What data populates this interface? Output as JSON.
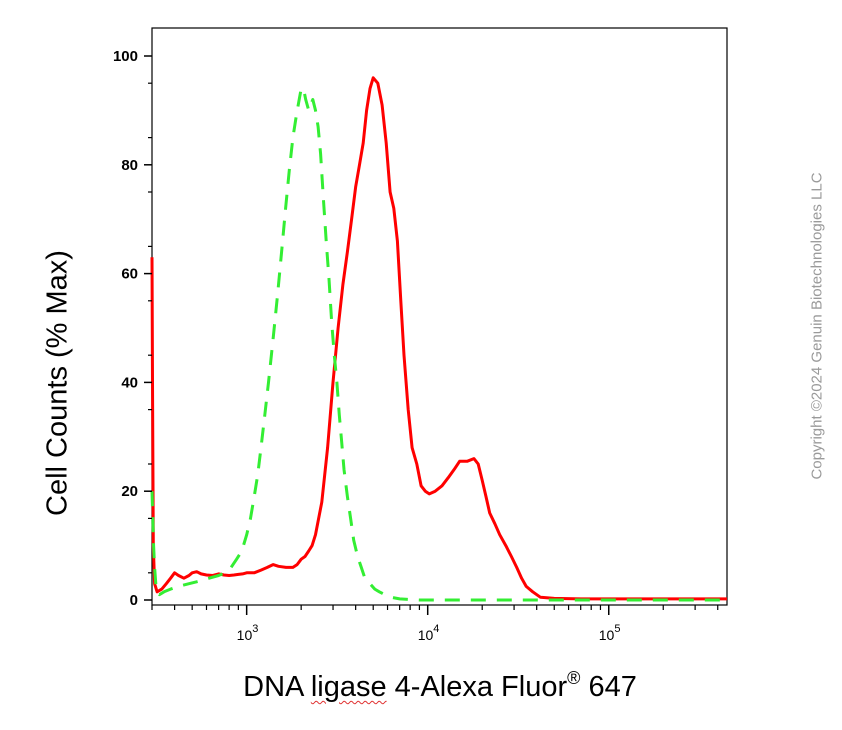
{
  "chart_data": {
    "type": "line",
    "title": "",
    "ylabel": "Cell Counts (% Max)",
    "xlabel_parts": {
      "pre": "DNA ",
      "squiggle": "ligase",
      "post": " 4-Alexa Fluor",
      "mark": "®",
      "end": " 647"
    },
    "x_scale": "log",
    "xlim": [
      300,
      450000
    ],
    "ylim": [
      0,
      100
    ],
    "y_ticks": [
      0,
      20,
      40,
      60,
      80,
      100
    ],
    "y_tick_labels": [
      "0",
      "20",
      "40",
      "60",
      "80",
      "100"
    ],
    "x_ticks": [
      {
        "value": 1000,
        "base": "10",
        "exp": "3"
      },
      {
        "value": 10000,
        "base": "10",
        "exp": "4"
      },
      {
        "value": 100000,
        "base": "10",
        "exp": "5"
      }
    ],
    "grid": false,
    "series": [
      {
        "color": "#ff0000",
        "style": "solid",
        "points": [
          [
            300,
            63
          ],
          [
            302,
            40
          ],
          [
            305,
            10
          ],
          [
            310,
            3
          ],
          [
            320,
            1.5
          ],
          [
            340,
            2
          ],
          [
            360,
            3
          ],
          [
            380,
            4
          ],
          [
            400,
            5
          ],
          [
            420,
            4.5
          ],
          [
            450,
            4
          ],
          [
            480,
            4.5
          ],
          [
            500,
            5
          ],
          [
            530,
            5.2
          ],
          [
            560,
            4.8
          ],
          [
            600,
            4.6
          ],
          [
            650,
            4.5
          ],
          [
            700,
            4.8
          ],
          [
            750,
            4.6
          ],
          [
            800,
            4.5
          ],
          [
            850,
            4.6
          ],
          [
            900,
            4.7
          ],
          [
            950,
            4.8
          ],
          [
            1000,
            5
          ],
          [
            1100,
            5
          ],
          [
            1200,
            5.5
          ],
          [
            1300,
            6
          ],
          [
            1400,
            6.5
          ],
          [
            1500,
            6.2
          ],
          [
            1650,
            6
          ],
          [
            1800,
            6
          ],
          [
            1900,
            6.5
          ],
          [
            2000,
            7.5
          ],
          [
            2100,
            8
          ],
          [
            2200,
            9
          ],
          [
            2300,
            10
          ],
          [
            2400,
            12
          ],
          [
            2600,
            18
          ],
          [
            2800,
            28
          ],
          [
            3000,
            40
          ],
          [
            3200,
            50
          ],
          [
            3400,
            58
          ],
          [
            3600,
            64
          ],
          [
            3800,
            70
          ],
          [
            4000,
            76
          ],
          [
            4200,
            80
          ],
          [
            4400,
            84
          ],
          [
            4600,
            90
          ],
          [
            4800,
            94
          ],
          [
            5000,
            96
          ],
          [
            5300,
            95
          ],
          [
            5600,
            91
          ],
          [
            5900,
            84
          ],
          [
            6200,
            75
          ],
          [
            6500,
            72
          ],
          [
            6800,
            66
          ],
          [
            7100,
            55
          ],
          [
            7400,
            45
          ],
          [
            7800,
            35
          ],
          [
            8200,
            28
          ],
          [
            8700,
            25
          ],
          [
            9200,
            21
          ],
          [
            9700,
            20
          ],
          [
            10200,
            19.5
          ],
          [
            11000,
            20
          ],
          [
            12000,
            21
          ],
          [
            13000,
            22.5
          ],
          [
            14000,
            24
          ],
          [
            15000,
            25.5
          ],
          [
            16500,
            25.5
          ],
          [
            18000,
            26
          ],
          [
            19000,
            25
          ],
          [
            20000,
            22
          ],
          [
            21000,
            19
          ],
          [
            22000,
            16
          ],
          [
            23500,
            14
          ],
          [
            25000,
            12
          ],
          [
            27000,
            10
          ],
          [
            29000,
            8
          ],
          [
            31000,
            6
          ],
          [
            33000,
            4
          ],
          [
            35000,
            2.5
          ],
          [
            38000,
            1.5
          ],
          [
            42000,
            0.5
          ],
          [
            50000,
            0.3
          ],
          [
            70000,
            0.2
          ],
          [
            100000,
            0.2
          ],
          [
            150000,
            0.2
          ],
          [
            250000,
            0.2
          ],
          [
            450000,
            0.2
          ]
        ]
      },
      {
        "color": "#33ee33",
        "style": "dashed",
        "points": [
          [
            300,
            20
          ],
          [
            303,
            15
          ],
          [
            306,
            10
          ],
          [
            310,
            6
          ],
          [
            315,
            3
          ],
          [
            320,
            1.5
          ],
          [
            330,
            1
          ],
          [
            350,
            1.5
          ],
          [
            380,
            2
          ],
          [
            420,
            2.5
          ],
          [
            480,
            3
          ],
          [
            550,
            3.5
          ],
          [
            620,
            4
          ],
          [
            700,
            4.5
          ],
          [
            760,
            5
          ],
          [
            820,
            6
          ],
          [
            880,
            7.5
          ],
          [
            940,
            9
          ],
          [
            1000,
            12
          ],
          [
            1050,
            15
          ],
          [
            1100,
            19
          ],
          [
            1150,
            23
          ],
          [
            1200,
            28
          ],
          [
            1260,
            34
          ],
          [
            1320,
            40
          ],
          [
            1400,
            48
          ],
          [
            1480,
            56
          ],
          [
            1560,
            64
          ],
          [
            1640,
            72
          ],
          [
            1720,
            79
          ],
          [
            1800,
            85
          ],
          [
            1880,
            89
          ],
          [
            1950,
            92
          ],
          [
            2000,
            94
          ],
          [
            2060,
            94
          ],
          [
            2120,
            92
          ],
          [
            2200,
            90
          ],
          [
            2260,
            91
          ],
          [
            2320,
            92
          ],
          [
            2400,
            90
          ],
          [
            2480,
            87
          ],
          [
            2560,
            82
          ],
          [
            2650,
            74
          ],
          [
            2750,
            66
          ],
          [
            2850,
            59
          ],
          [
            2950,
            51
          ],
          [
            3050,
            45
          ],
          [
            3150,
            40
          ],
          [
            3250,
            34
          ],
          [
            3350,
            29
          ],
          [
            3450,
            24
          ],
          [
            3600,
            19
          ],
          [
            3750,
            15
          ],
          [
            3900,
            11
          ],
          [
            4100,
            8
          ],
          [
            4300,
            6
          ],
          [
            4500,
            4
          ],
          [
            4800,
            3
          ],
          [
            5100,
            2
          ],
          [
            5400,
            1.5
          ],
          [
            5800,
            1
          ],
          [
            6300,
            0.5
          ],
          [
            7000,
            0.2
          ],
          [
            9000,
            0
          ],
          [
            15000,
            0
          ],
          [
            30000,
            0
          ],
          [
            60000,
            0
          ],
          [
            120000,
            0
          ],
          [
            250000,
            0
          ],
          [
            450000,
            0
          ]
        ]
      }
    ]
  },
  "copyright": "Copyright ©2024 Genuin Biotechnologies LLC"
}
